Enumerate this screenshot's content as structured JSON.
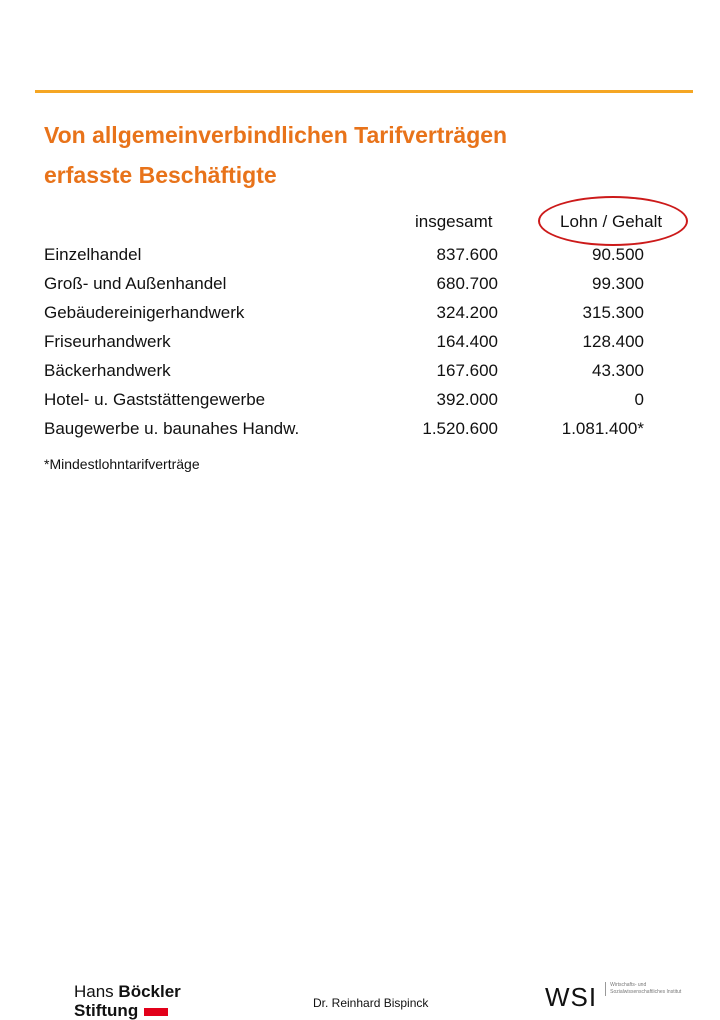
{
  "colors": {
    "accent_orange": "#f5a623",
    "title_orange": "#e8731a",
    "circle_red": "#cc1a1a",
    "logo_red": "#e2001a"
  },
  "title": {
    "line1": "Von allgemeinverbindlichen Tarifverträgen",
    "line2": "erfasste Beschäftigte"
  },
  "columns": {
    "col1": "insgesamt",
    "col2": "Lohn / Gehalt"
  },
  "rows": [
    {
      "label": "Einzelhandel",
      "total": "837.600",
      "wage": "90.500"
    },
    {
      "label": "Groß- und Außenhandel",
      "total": "680.700",
      "wage": "99.300"
    },
    {
      "label": "Gebäudereinigerhandwerk",
      "total": "324.200",
      "wage": "315.300"
    },
    {
      "label": "Friseurhandwerk",
      "total": "164.400",
      "wage": "128.400"
    },
    {
      "label": "Bäckerhandwerk",
      "total": "167.600",
      "wage": "43.300"
    },
    {
      "label": "Hotel- u. Gaststättengewerbe",
      "total": "392.000",
      "wage": "0"
    },
    {
      "label": "Baugewerbe u. baunahes Handw.",
      "total": "1.520.600",
      "wage": "1.081.400*"
    }
  ],
  "footnote": "*Mindestlohntarifverträge",
  "footer": {
    "logo_line1_a": "Hans ",
    "logo_line1_b": "Böckler",
    "logo_line2": "Stiftung",
    "author": "Dr. Reinhard Bispinck",
    "wsi": "WSI",
    "wsi_small": "Wirtschafts- und Sozialwissenschaftliches Institut"
  },
  "icons": {
    "logo_bar": "red-bar-icon",
    "highlight": "red-ellipse-icon"
  }
}
